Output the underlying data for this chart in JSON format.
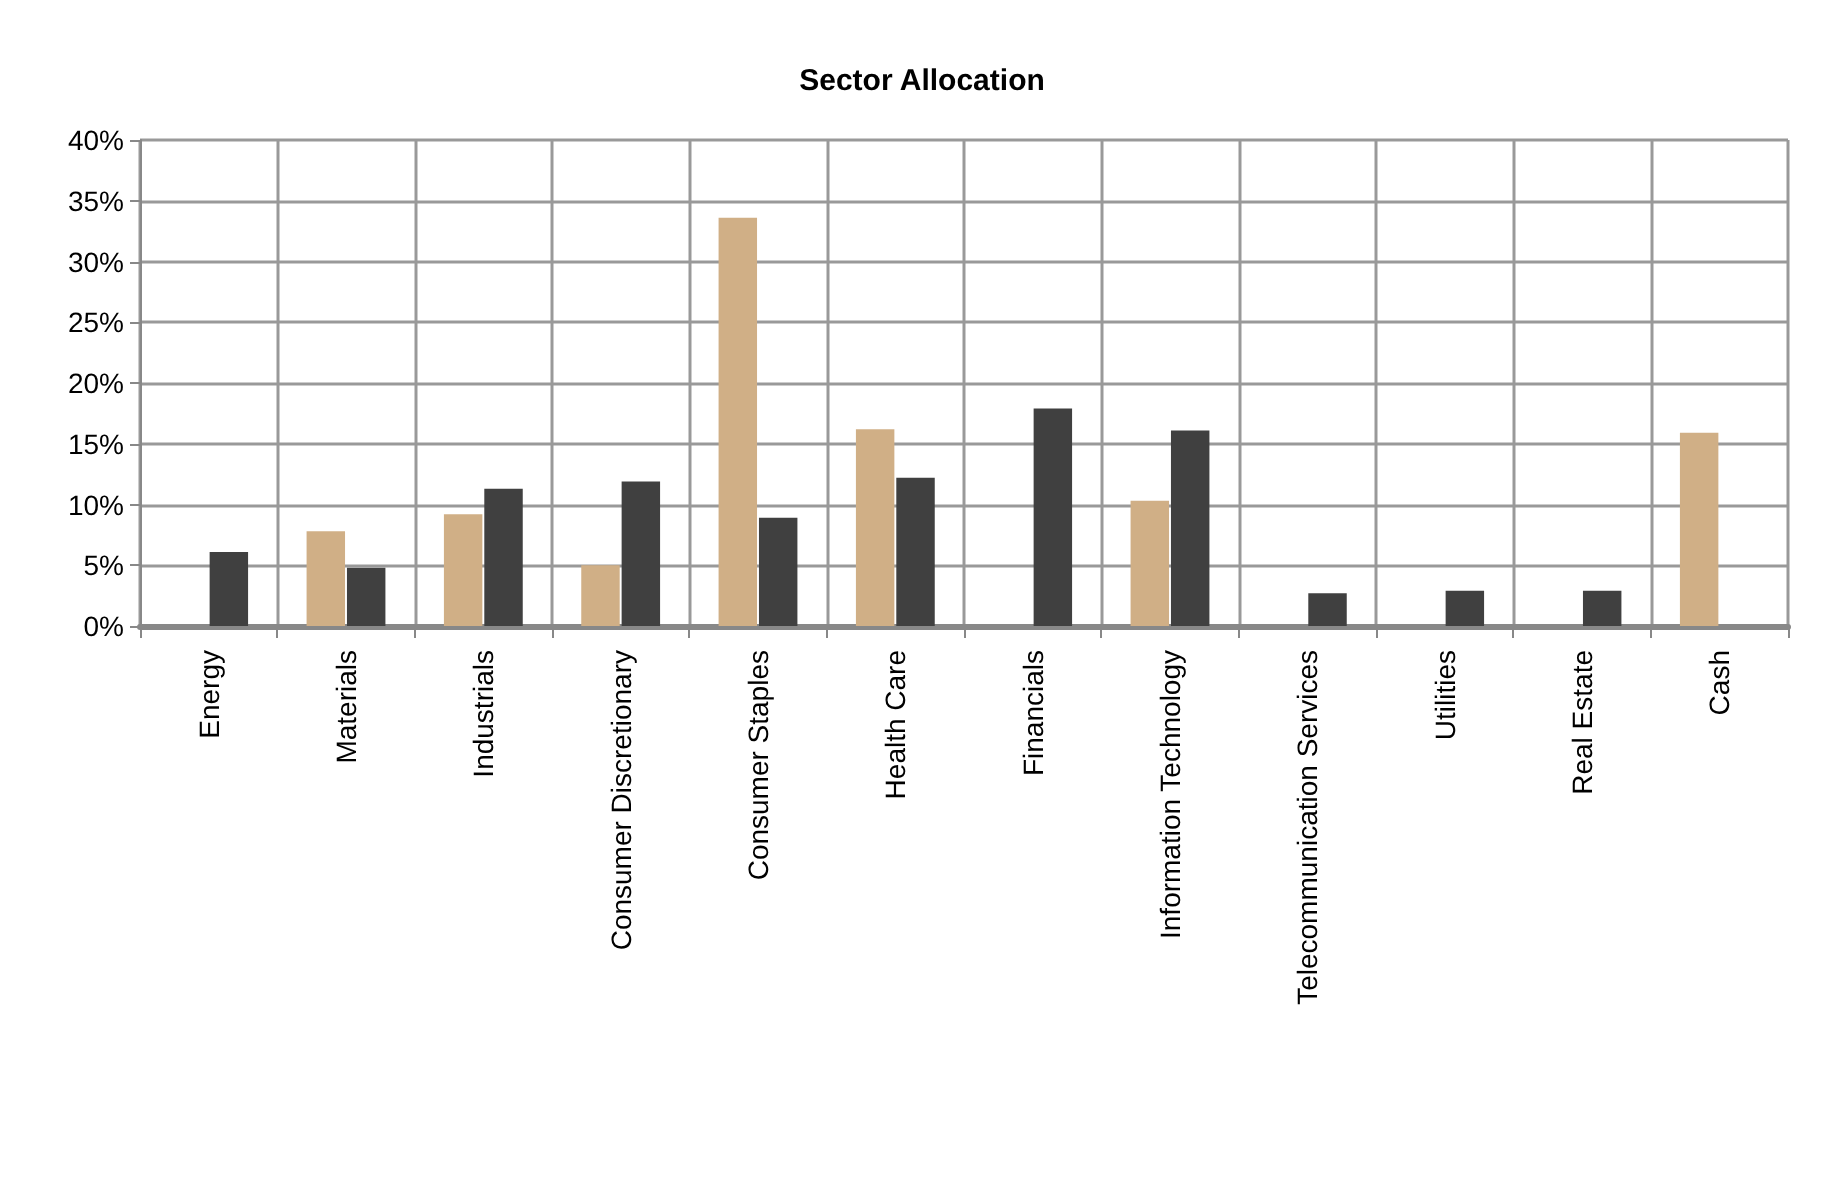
{
  "chart_data": {
    "type": "bar",
    "title": "Sector Allocation",
    "categories": [
      "Energy",
      "Materials",
      "Industrials",
      "Consumer Discretionary",
      "Consumer Staples",
      "Health Care",
      "Financials",
      "Information Technology",
      "Telecommunication Services",
      "Utilities",
      "Real Estate",
      "Cash"
    ],
    "series": [
      {
        "color": "#d0af86",
        "values": [
          null,
          7.8,
          9.2,
          5.0,
          33.6,
          16.2,
          null,
          10.3,
          null,
          null,
          null,
          15.9
        ]
      },
      {
        "color": "#404040",
        "values": [
          6.1,
          4.8,
          11.3,
          11.9,
          8.9,
          12.2,
          17.9,
          16.1,
          2.7,
          2.9,
          2.9,
          null
        ]
      }
    ],
    "ylim": [
      0,
      40
    ],
    "yticks": [
      {
        "value": 0,
        "label": "0%"
      },
      {
        "value": 5,
        "label": "5%"
      },
      {
        "value": 10,
        "label": "10%"
      },
      {
        "value": 15,
        "label": "15%"
      },
      {
        "value": 20,
        "label": "20%"
      },
      {
        "value": 25,
        "label": "25%"
      },
      {
        "value": 30,
        "label": "30%"
      },
      {
        "value": 35,
        "label": "35%"
      },
      {
        "value": 40,
        "label": "40%"
      }
    ],
    "grid": true
  }
}
